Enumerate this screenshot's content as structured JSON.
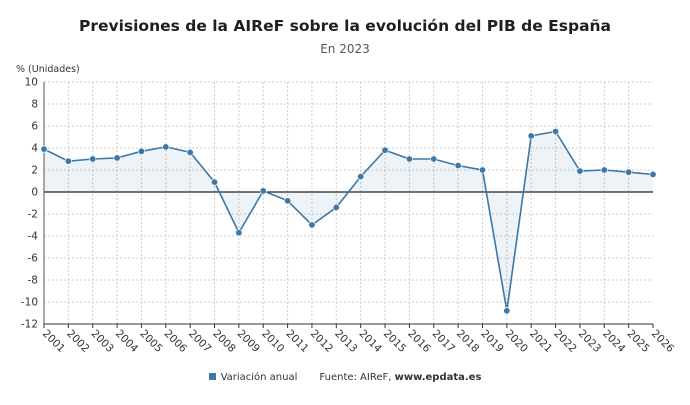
{
  "chart_data": {
    "type": "area",
    "title": "Previsiones de la AIReF sobre la evolución del PIB de España",
    "subtitle": "En 2023",
    "ylabel": "% (Unidades)",
    "xlabel": "",
    "ylim": [
      -12,
      10
    ],
    "yticks": [
      10,
      8,
      6,
      4,
      2,
      0,
      -2,
      -4,
      -6,
      -8,
      -10,
      -12
    ],
    "grid": true,
    "legend_position": "bottom",
    "categories": [
      "2001",
      "2002",
      "2003",
      "2004",
      "2005",
      "2006",
      "2007",
      "2008",
      "2009",
      "2010",
      "2011",
      "2012",
      "2013",
      "2014",
      "2015",
      "2016",
      "2017",
      "2018",
      "2019",
      "2020",
      "2021",
      "2022",
      "2023",
      "2024",
      "2025",
      "2026"
    ],
    "series": [
      {
        "name": "Variación anual",
        "color": "#3d77a8",
        "values": [
          3.9,
          2.8,
          3.0,
          3.1,
          3.7,
          4.1,
          3.6,
          0.9,
          -3.7,
          0.1,
          -0.8,
          -3.0,
          -1.4,
          1.4,
          3.8,
          3.0,
          3.0,
          2.4,
          2.0,
          -10.8,
          5.1,
          5.5,
          1.9,
          2.0,
          1.8,
          1.6
        ]
      }
    ]
  },
  "legend": {
    "series_label": "Variación anual",
    "source_prefix": "Fuente: AIReF, ",
    "source_site": "www.epdata.es"
  }
}
